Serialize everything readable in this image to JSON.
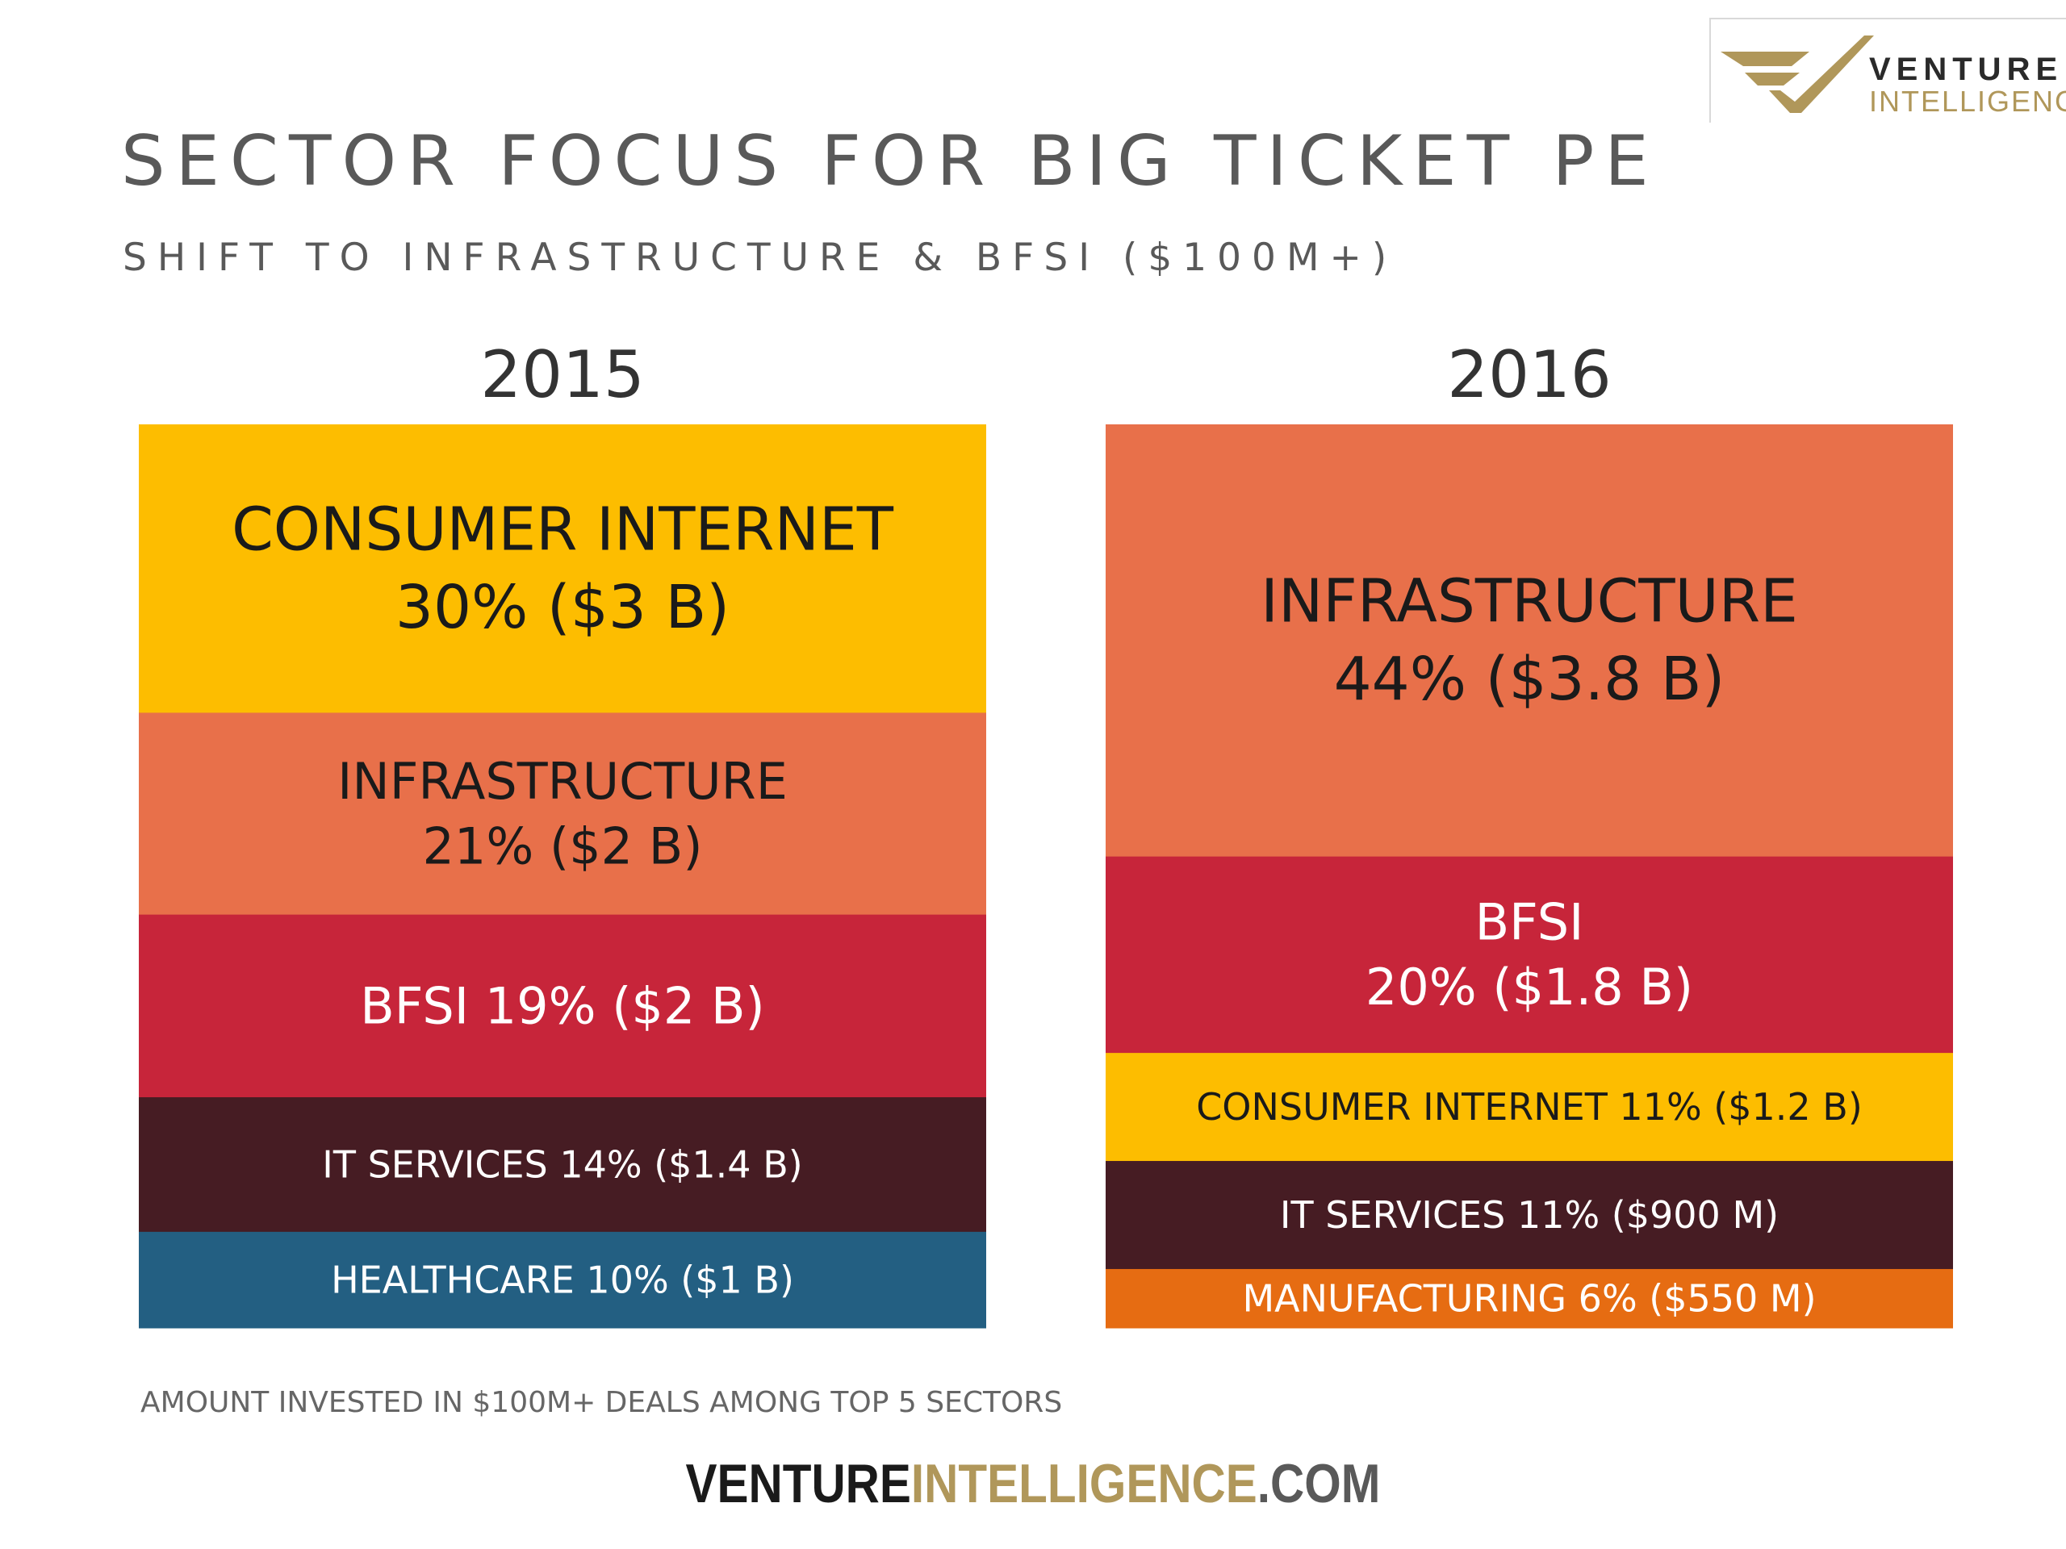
{
  "header": {
    "title": "SECTOR FOCUS FOR BIG TICKET PE",
    "subtitle": "SHIFT TO INFRASTRUCTURE & BFSI ($100M+)"
  },
  "logo": {
    "word1": "VENTURE",
    "word2": "INTELLIGENCE",
    "colors": {
      "gold": "#b0975a",
      "dark": "#2a2a2a"
    }
  },
  "chart_data": [
    {
      "type": "bar",
      "title": "2015",
      "segments": [
        {
          "lines": [
            "CONSUMER INTERNET",
            "30% ($3 B)"
          ],
          "percent": 30,
          "value_billion_usd": 3,
          "color": "#fdbd00",
          "text_color": "#1a1a1a",
          "text_size": "large"
        },
        {
          "lines": [
            "INFRASTRUCTURE",
            "21% ($2 B)"
          ],
          "percent": 21,
          "value_billion_usd": 2,
          "color": "#e8704a",
          "text_color": "#1a1a1a",
          "text_size": "medium"
        },
        {
          "lines": [
            "BFSI 19% ($2 B)"
          ],
          "percent": 19,
          "value_billion_usd": 2,
          "color": "#c7253a",
          "text_color": "#ffffff",
          "text_size": "medium"
        },
        {
          "lines": [
            "IT SERVICES 14% ($1.4 B)"
          ],
          "percent": 14,
          "value_billion_usd": 1.4,
          "color": "#461c23",
          "text_color": "#ffffff",
          "text_size": "small"
        },
        {
          "lines": [
            "HEALTHCARE 10% ($1 B)"
          ],
          "percent": 10,
          "value_billion_usd": 1,
          "color": "#235f82",
          "text_color": "#ffffff",
          "text_size": "small"
        }
      ]
    },
    {
      "type": "bar",
      "title": "2016",
      "segments": [
        {
          "lines": [
            "INFRASTRUCTURE",
            "44% ($3.8 B)"
          ],
          "percent": 44,
          "value_billion_usd": 3.8,
          "color": "#e8704a",
          "text_color": "#1a1a1a",
          "text_size": "large"
        },
        {
          "lines": [
            "BFSI",
            "20% ($1.8 B)"
          ],
          "percent": 20,
          "value_billion_usd": 1.8,
          "color": "#c7253a",
          "text_color": "#ffffff",
          "text_size": "medium"
        },
        {
          "lines": [
            "CONSUMER INTERNET 11% ($1.2 B)"
          ],
          "percent": 11,
          "value_billion_usd": 1.2,
          "color": "#fdbd00",
          "text_color": "#1a1a1a",
          "text_size": "small"
        },
        {
          "lines": [
            "IT SERVICES 11% ($900 M)"
          ],
          "percent": 11,
          "value_billion_usd": 0.9,
          "color": "#461c23",
          "text_color": "#ffffff",
          "text_size": "small"
        },
        {
          "lines": [
            "MANUFACTURING 6% ($550 M)"
          ],
          "percent": 6,
          "value_billion_usd": 0.55,
          "color": "#e66c12",
          "text_color": "#ffffff",
          "text_size": "small"
        }
      ]
    }
  ],
  "note": "AMOUNT INVESTED IN $100M+ DEALS AMONG TOP 5 SECTORS",
  "footer": {
    "part1": "VENTURE",
    "part2": "INTELLIGENCE",
    "part3": ".COM"
  }
}
